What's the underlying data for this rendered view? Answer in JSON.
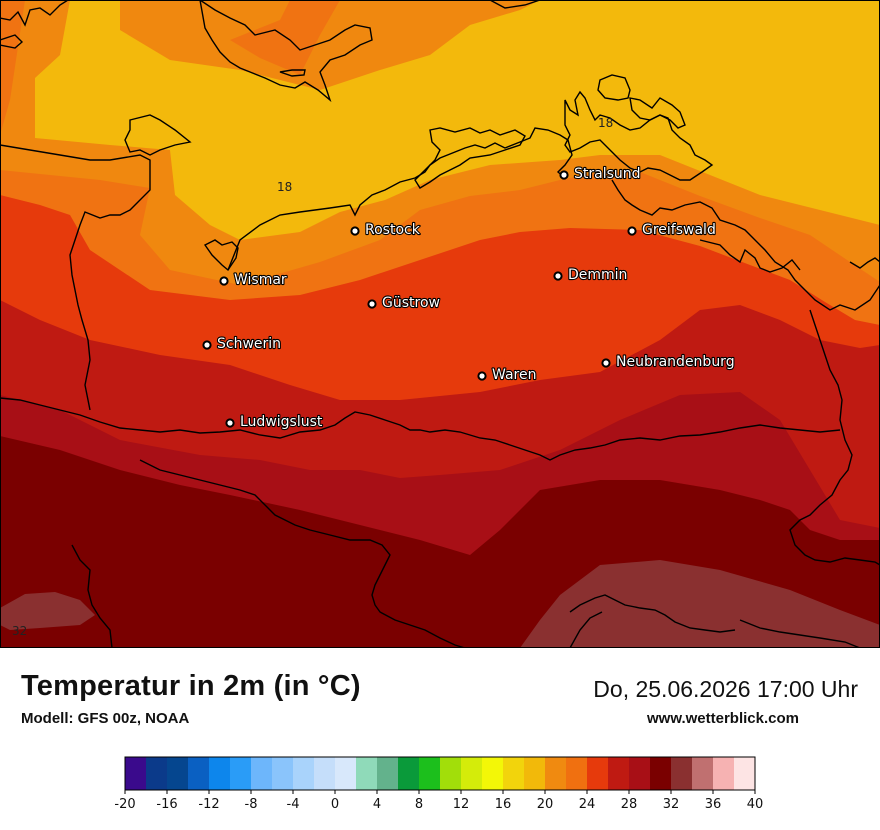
{
  "title": "Temperatur in 2m (in °C)",
  "model": "Modell: GFS 00z, NOAA",
  "datetime": "Do, 25.06.2026 17:00 Uhr",
  "website": "www.wetterblick.com",
  "cities": [
    {
      "name": "Stralsund"
    },
    {
      "name": "Rostock"
    },
    {
      "name": "Greifswald"
    },
    {
      "name": "Wismar"
    },
    {
      "name": "Demmin"
    },
    {
      "name": "Güstrow"
    },
    {
      "name": "Schwerin"
    },
    {
      "name": "Neubrandenburg"
    },
    {
      "name": "Waren"
    },
    {
      "name": "Ludwigslust"
    }
  ],
  "contour_labels": [
    "18",
    "18",
    "32"
  ],
  "legend": {
    "unit": "°C",
    "min": -20,
    "max": 40,
    "step": 2,
    "tick_labels": [
      "-20",
      "-16",
      "-12",
      "-8",
      "-4",
      "0",
      "4",
      "8",
      "12",
      "16",
      "20",
      "24",
      "28",
      "32",
      "36",
      "40"
    ],
    "colors": [
      "#3a0a8c",
      "#0b3a8a",
      "#05468f",
      "#0a60c2",
      "#0d86ec",
      "#2a9cf7",
      "#6db6fb",
      "#8ac4fb",
      "#a9d3fb",
      "#c5defa",
      "#d8e8fb",
      "#8fdab9",
      "#63b28c",
      "#0a9a3a",
      "#1cbf1c",
      "#a2de0a",
      "#d4ec0a",
      "#f3f707",
      "#f2d40c",
      "#f2b90a",
      "#f08a10",
      "#f07010",
      "#e63a0c",
      "#bf1a12",
      "#a80f16",
      "#7a0000",
      "#8a3030",
      "#c07070",
      "#f6b2b2",
      "#fde4e4"
    ]
  }
}
